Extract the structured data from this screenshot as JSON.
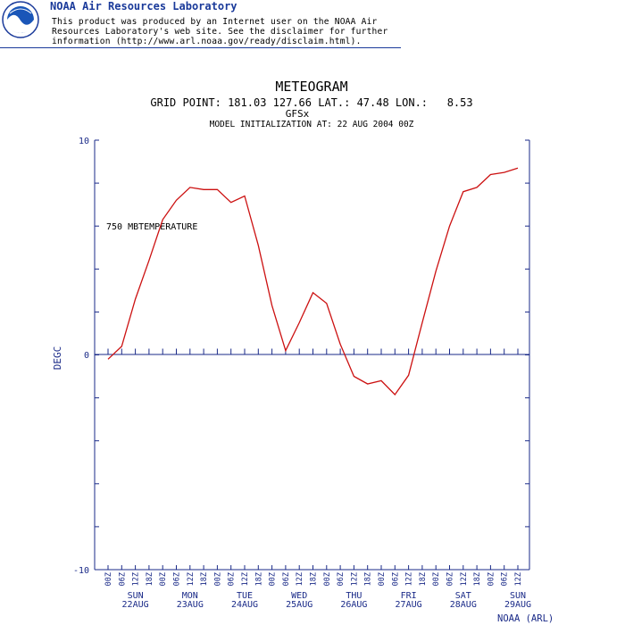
{
  "header": {
    "brand": "NOAA Air Resources Laboratory",
    "disclaimer": [
      "This product was produced by an Internet user on the NOAA Air",
      "Resources Laboratory's web site.  See the disclaimer for further",
      "information (http://www.arl.noaa.gov/ready/disclaim.html)."
    ],
    "logo_icon": "noaa-logo-icon",
    "brand_color": "#1a3a9a"
  },
  "chart_data": {
    "type": "line",
    "title": "METEOGRAM",
    "subtitle": "GRID POINT: 181.03 127.66 LAT.: 47.48 LON.:   8.53",
    "model": "GFSx",
    "init_line": "MODEL INITIALIZATION AT: 22 AUG 2004 00Z",
    "ylabel": "DEGC",
    "ylim": [
      -10,
      10
    ],
    "yticks": [
      "10",
      "0",
      "-10"
    ],
    "series": [
      {
        "name": "750 MBTEMPERATURE",
        "color": "#cc1111",
        "x": [
          0,
          6,
          12,
          18,
          24,
          30,
          36,
          42,
          48,
          54,
          60,
          66,
          72,
          78,
          84,
          90,
          96,
          102,
          108,
          114,
          120,
          126,
          132,
          138,
          144,
          150,
          156,
          162,
          168,
          174,
          180
        ],
        "values": [
          -0.2,
          0.4,
          2.6,
          4.4,
          6.3,
          7.2,
          7.8,
          7.7,
          7.7,
          7.1,
          7.4,
          5.1,
          2.3,
          0.2,
          1.5,
          2.9,
          2.4,
          0.5,
          -1.0,
          -1.35,
          -1.2,
          -1.85,
          -0.95,
          1.5,
          3.9,
          6.0,
          7.6,
          7.8,
          8.4,
          8.5,
          8.7
        ]
      }
    ],
    "xticks": [
      "00Z",
      "06Z",
      "12Z",
      "18Z",
      "00Z",
      "06Z",
      "12Z",
      "18Z",
      "00Z",
      "06Z",
      "12Z",
      "18Z",
      "00Z",
      "06Z",
      "12Z",
      "18Z",
      "00Z",
      "06Z",
      "12Z",
      "18Z",
      "00Z",
      "06Z",
      "12Z",
      "18Z",
      "00Z",
      "06Z",
      "12Z",
      "18Z",
      "00Z",
      "06Z",
      "12Z"
    ],
    "days": [
      {
        "day": "SUN",
        "date": "22AUG"
      },
      {
        "day": "MON",
        "date": "23AUG"
      },
      {
        "day": "TUE",
        "date": "24AUG"
      },
      {
        "day": "WED",
        "date": "25AUG"
      },
      {
        "day": "THU",
        "date": "26AUG"
      },
      {
        "day": "FRI",
        "date": "27AUG"
      },
      {
        "day": "SAT",
        "date": "28AUG"
      },
      {
        "day": "SUN",
        "date": "29AUG"
      }
    ],
    "credit": "NOAA (ARL)",
    "axis_color": "#1a2a88"
  }
}
